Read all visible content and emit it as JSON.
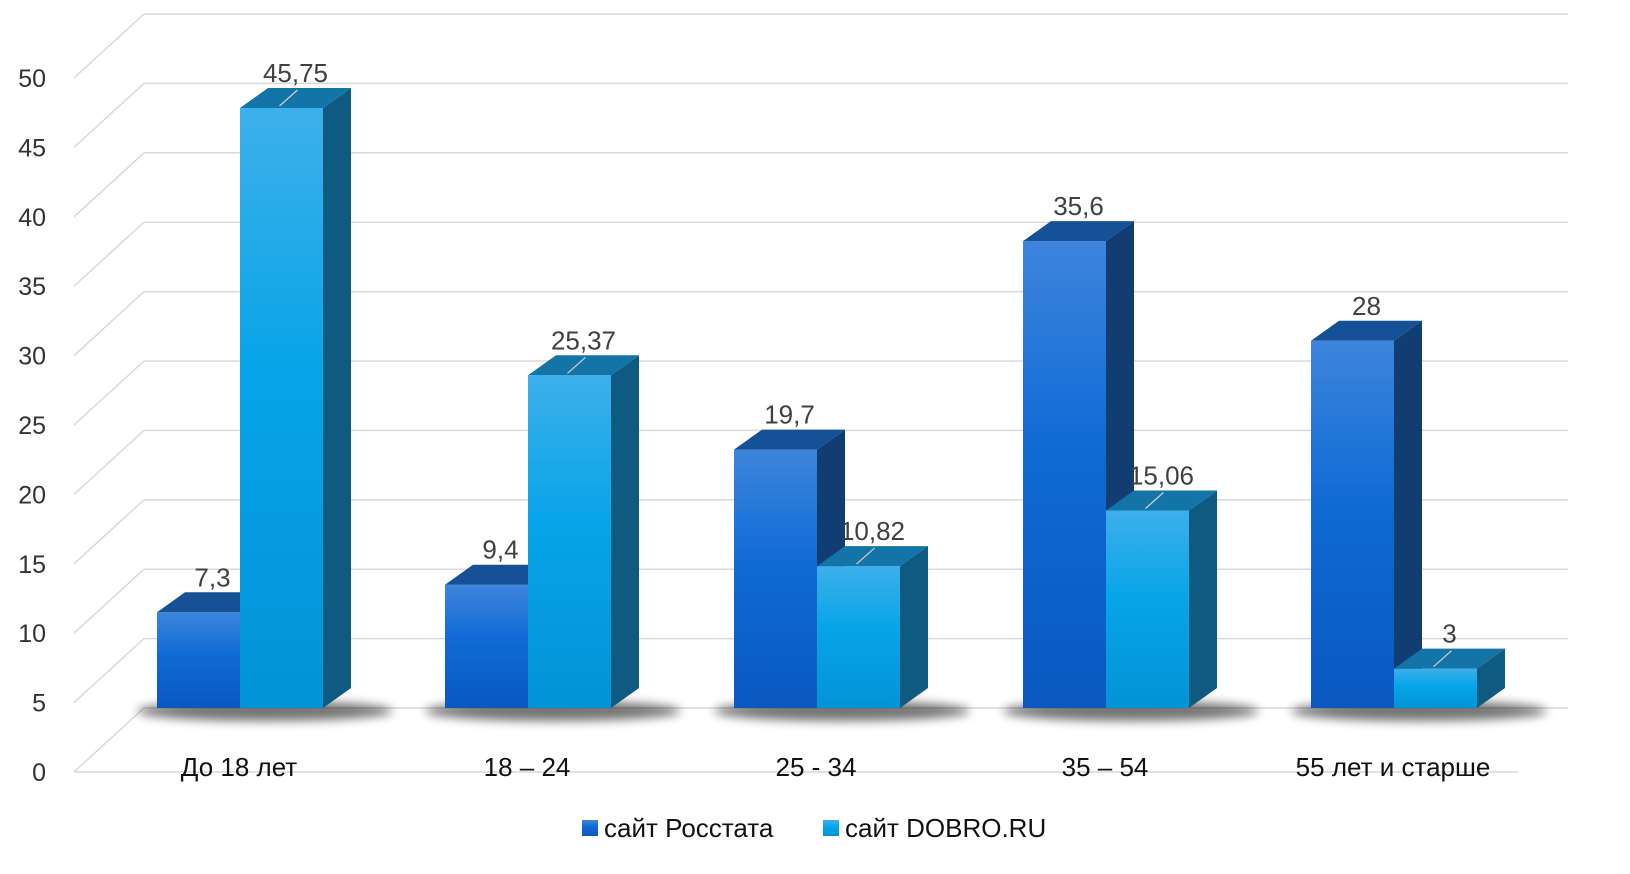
{
  "chart_data": {
    "type": "bar",
    "style": "3d-clustered-column",
    "categories": [
      "До 18 лет",
      "18 – 24",
      "25 - 34",
      "35 – 54",
      "55 лет и старше"
    ],
    "series": [
      {
        "name": "сайт Росстата",
        "values": [
          7.3,
          9.4,
          19.7,
          35.6,
          28
        ],
        "labels": [
          "7,3",
          "9,4",
          "19,7",
          "35,6",
          "28"
        ],
        "color": "#1f6fd1"
      },
      {
        "name": "сайт DOBRO.RU",
        "values": [
          45.75,
          25.37,
          10.82,
          15.06,
          3
        ],
        "labels": [
          "45,75",
          "25,37",
          "10,82",
          "15,06",
          "3"
        ],
        "color": "#1aa3e8"
      }
    ],
    "yticks": [
      "0",
      "5",
      "10",
      "15",
      "20",
      "25",
      "30",
      "35",
      "40",
      "45",
      "50"
    ],
    "ylim": [
      0,
      50
    ],
    "grid": true,
    "legend_position": "bottom"
  }
}
